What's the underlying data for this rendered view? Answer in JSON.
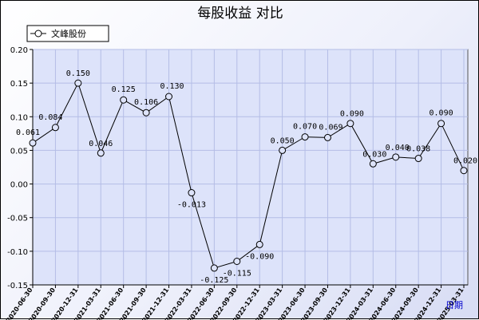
{
  "chart_data": {
    "type": "line",
    "title": "每股收益  对比",
    "x_axis_name": "日期",
    "ylim": [
      -0.15,
      0.2
    ],
    "yticks": [
      "0.20",
      "0.15",
      "0.10",
      "0.05",
      "0.00",
      "-0.05",
      "-0.10",
      "-0.15"
    ],
    "ytick_values": [
      0.2,
      0.15,
      0.1,
      0.05,
      0.0,
      -0.05,
      -0.1,
      -0.15
    ],
    "grid": true,
    "legend_placement": "top-left",
    "categories": [
      "2020-06-30",
      "2020-09-30",
      "2020-12-31",
      "2021-03-31",
      "2021-06-30",
      "2021-09-30",
      "2021-12-31",
      "2022-03-31",
      "2022-06-30",
      "2022-09-30",
      "2022-12-31",
      "2023-03-31",
      "2023-06-30",
      "2023-09-30",
      "2023-12-31",
      "2024-03-31",
      "2024-06-30",
      "2024-09-30",
      "2024-12-31",
      "2025-03-31"
    ],
    "series": [
      {
        "name": "文峰股份",
        "values": [
          0.061,
          0.084,
          0.15,
          0.046,
          0.125,
          0.106,
          0.13,
          -0.013,
          -0.125,
          -0.115,
          -0.09,
          0.05,
          0.07,
          0.069,
          0.09,
          0.03,
          0.04,
          0.038,
          0.09,
          0.02
        ],
        "labels": [
          "0.061",
          "0.084",
          "0.150",
          "0.046",
          "0.125",
          "0.106",
          "0.130",
          "-0.013",
          "-0.125",
          "-0.115",
          "-0.090",
          "0.050",
          "0.070",
          "0.069",
          "0.090",
          "0.030",
          "0.040",
          "0.038",
          "0.090",
          "0.020"
        ]
      }
    ]
  },
  "colors": {
    "plot_bg": "#dde3fa",
    "grid": "#b4bde6",
    "line": "#000000",
    "marker_fill": "#dde3fa",
    "axis_name": "#0000cc"
  }
}
